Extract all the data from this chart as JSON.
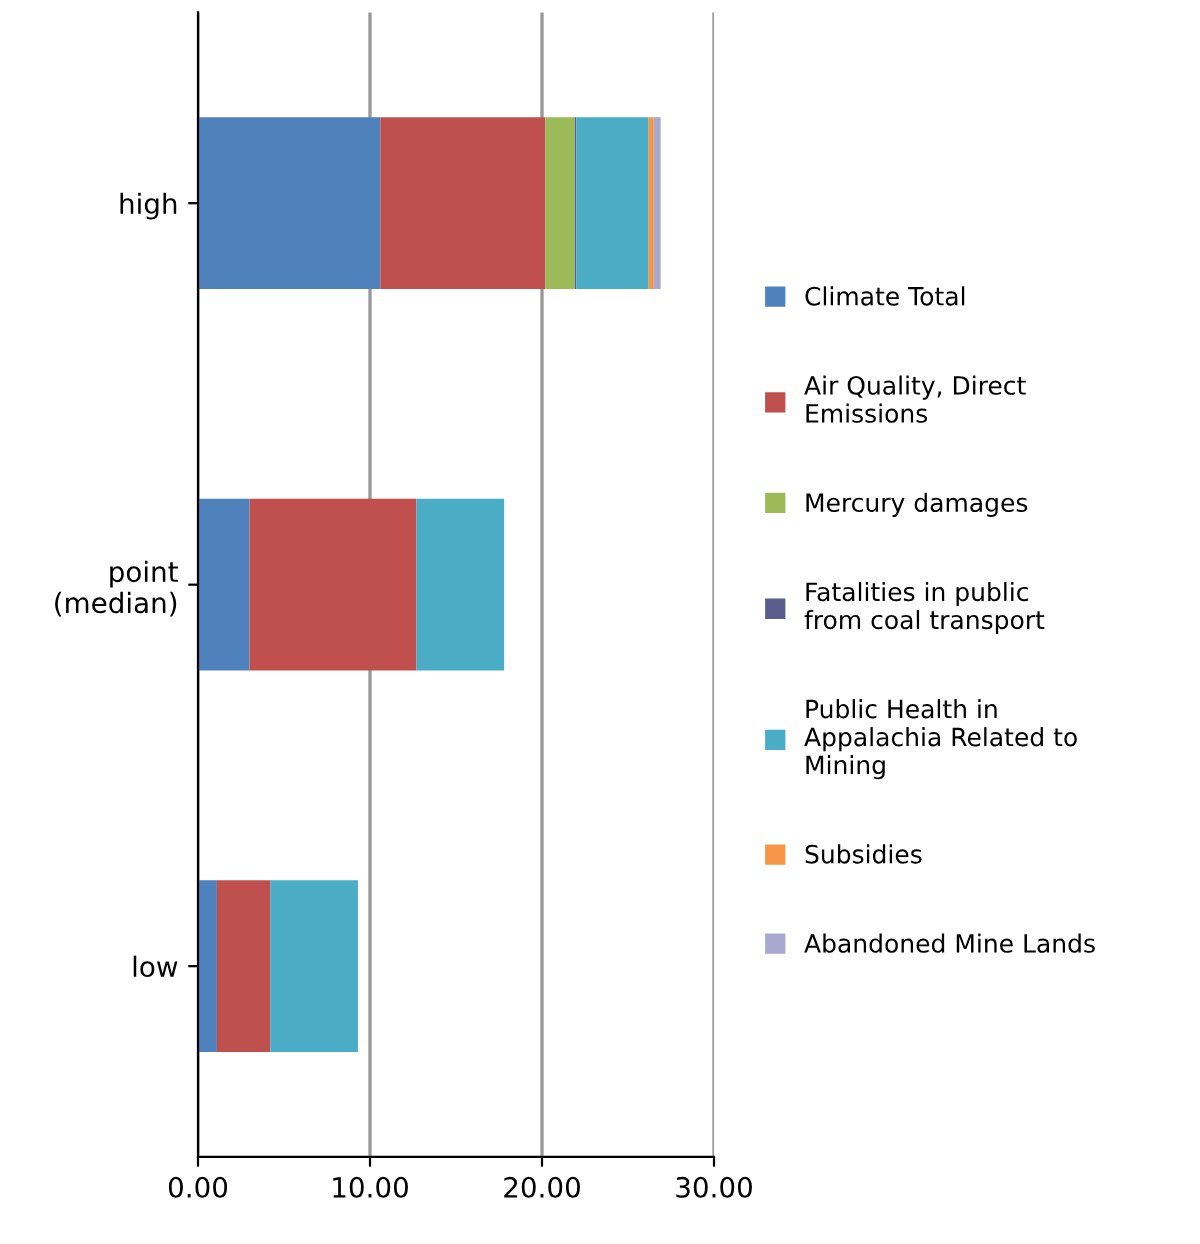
{
  "chart_data": {
    "type": "bar",
    "orientation": "horizontal",
    "stacked": true,
    "categories": [
      "high",
      "point (median)",
      "low"
    ],
    "series": [
      {
        "name": "Climate Total",
        "color": "#4f81bd",
        "values": [
          10.6,
          3.0,
          1.1
        ]
      },
      {
        "name": "Air Quality, Direct Emissions",
        "color": "#c0504d",
        "values": [
          9.6,
          9.7,
          3.1
        ]
      },
      {
        "name": "Mercury damages",
        "color": "#9bbb59",
        "values": [
          1.7,
          0,
          0
        ]
      },
      {
        "name": "Fatalities in public from coal transport",
        "color": "#5a5e8c",
        "values": [
          0.1,
          0,
          0
        ]
      },
      {
        "name": "Public Health in Appalachia Related to Mining",
        "color": "#4bacc6",
        "values": [
          4.2,
          5.1,
          5.1
        ]
      },
      {
        "name": "Subsidies",
        "color": "#f79646",
        "values": [
          0.3,
          0,
          0
        ]
      },
      {
        "name": "Abandoned Mine Lands",
        "color": "#a9a9d0",
        "values": [
          0.4,
          0,
          0
        ]
      }
    ],
    "xlim": [
      0,
      30
    ],
    "xticks": [
      {
        "value": 0,
        "label": "0.00"
      },
      {
        "value": 10,
        "label": "10.00"
      },
      {
        "value": 20,
        "label": "20.00"
      },
      {
        "value": 30,
        "label": "30.00"
      }
    ],
    "grid": "x",
    "legend": "right"
  }
}
